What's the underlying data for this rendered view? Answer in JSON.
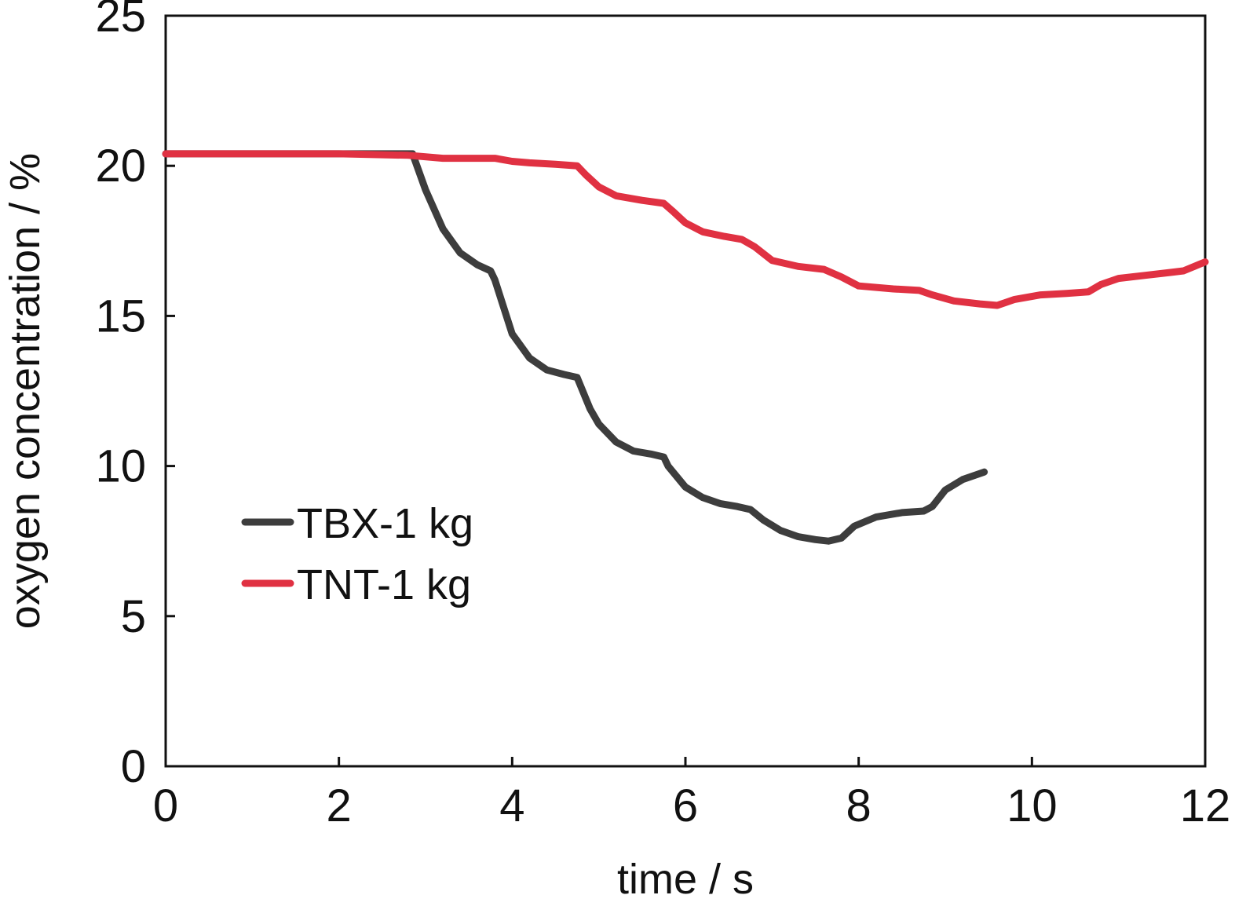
{
  "chart_data": {
    "type": "line",
    "title": "",
    "xlabel": "time / s",
    "ylabel": "oxygen concentration / %",
    "xlim": [
      0,
      12
    ],
    "ylim": [
      0,
      25
    ],
    "xticks": [
      0,
      2,
      4,
      6,
      8,
      10,
      12
    ],
    "yticks": [
      0,
      5,
      10,
      15,
      20,
      25
    ],
    "grid": false,
    "legend_position": "center-left",
    "series": [
      {
        "name": "TBX-1 kg",
        "color": "#3d3d3d",
        "points": [
          [
            0,
            20.4
          ],
          [
            1,
            20.4
          ],
          [
            2,
            20.4
          ],
          [
            2.85,
            20.4
          ],
          [
            2.9,
            20.0
          ],
          [
            3.0,
            19.2
          ],
          [
            3.2,
            17.9
          ],
          [
            3.4,
            17.1
          ],
          [
            3.6,
            16.7
          ],
          [
            3.75,
            16.5
          ],
          [
            3.8,
            16.2
          ],
          [
            3.9,
            15.3
          ],
          [
            4.0,
            14.4
          ],
          [
            4.2,
            13.6
          ],
          [
            4.4,
            13.2
          ],
          [
            4.6,
            13.05
          ],
          [
            4.75,
            12.95
          ],
          [
            4.8,
            12.6
          ],
          [
            4.9,
            11.9
          ],
          [
            5.0,
            11.4
          ],
          [
            5.2,
            10.8
          ],
          [
            5.4,
            10.5
          ],
          [
            5.6,
            10.4
          ],
          [
            5.75,
            10.3
          ],
          [
            5.8,
            10.0
          ],
          [
            6.0,
            9.3
          ],
          [
            6.2,
            8.95
          ],
          [
            6.4,
            8.75
          ],
          [
            6.6,
            8.65
          ],
          [
            6.75,
            8.55
          ],
          [
            6.9,
            8.2
          ],
          [
            7.1,
            7.85
          ],
          [
            7.3,
            7.65
          ],
          [
            7.5,
            7.55
          ],
          [
            7.65,
            7.5
          ],
          [
            7.8,
            7.6
          ],
          [
            7.95,
            8.0
          ],
          [
            8.2,
            8.3
          ],
          [
            8.5,
            8.45
          ],
          [
            8.75,
            8.5
          ],
          [
            8.85,
            8.65
          ],
          [
            9.0,
            9.2
          ],
          [
            9.2,
            9.55
          ],
          [
            9.45,
            9.8
          ]
        ]
      },
      {
        "name": "TNT-1 kg",
        "color": "#e03142",
        "points": [
          [
            0,
            20.4
          ],
          [
            1,
            20.4
          ],
          [
            2,
            20.4
          ],
          [
            2.8,
            20.35
          ],
          [
            3.2,
            20.25
          ],
          [
            3.6,
            20.25
          ],
          [
            3.8,
            20.25
          ],
          [
            4.0,
            20.15
          ],
          [
            4.2,
            20.1
          ],
          [
            4.5,
            20.05
          ],
          [
            4.75,
            20.0
          ],
          [
            4.85,
            19.7
          ],
          [
            5.0,
            19.3
          ],
          [
            5.2,
            19.0
          ],
          [
            5.5,
            18.85
          ],
          [
            5.75,
            18.75
          ],
          [
            5.85,
            18.5
          ],
          [
            6.0,
            18.1
          ],
          [
            6.2,
            17.8
          ],
          [
            6.45,
            17.65
          ],
          [
            6.65,
            17.55
          ],
          [
            6.8,
            17.3
          ],
          [
            7.0,
            16.85
          ],
          [
            7.3,
            16.65
          ],
          [
            7.6,
            16.55
          ],
          [
            7.8,
            16.3
          ],
          [
            8.0,
            16.0
          ],
          [
            8.4,
            15.9
          ],
          [
            8.7,
            15.85
          ],
          [
            8.85,
            15.7
          ],
          [
            9.1,
            15.5
          ],
          [
            9.4,
            15.4
          ],
          [
            9.6,
            15.35
          ],
          [
            9.8,
            15.55
          ],
          [
            10.1,
            15.7
          ],
          [
            10.4,
            15.75
          ],
          [
            10.65,
            15.8
          ],
          [
            10.8,
            16.05
          ],
          [
            11.0,
            16.25
          ],
          [
            11.3,
            16.35
          ],
          [
            11.6,
            16.45
          ],
          [
            11.75,
            16.5
          ],
          [
            12.0,
            16.8
          ]
        ]
      }
    ]
  }
}
